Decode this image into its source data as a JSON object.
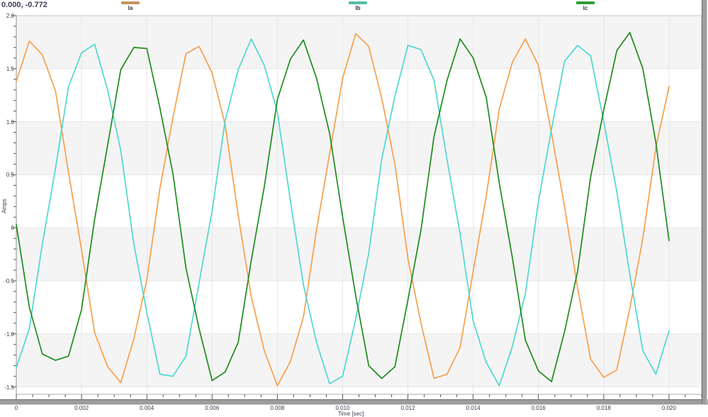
{
  "ui": {
    "cursor_readout": "0.000, -0.772"
  },
  "chart_data": {
    "type": "line",
    "title": "",
    "xlabel": "Time [sec]",
    "ylabel": "Amps",
    "xlim": [
      0,
      0.021
    ],
    "ylim": [
      -1.57,
      2.0
    ],
    "grid": true,
    "legend_position": "top",
    "x_tick_labels": [
      "0",
      "0.002",
      "0.004",
      "0.006",
      "0.008",
      "0.010",
      "0.012",
      "0.014",
      "0.016",
      "0.018",
      "0.020"
    ],
    "x_major_ticks": [
      0,
      0.002,
      0.004,
      0.006,
      0.008,
      0.01,
      0.012,
      0.014,
      0.016,
      0.018,
      0.02
    ],
    "x_minor_step": 0.0005,
    "y_tick_labels": [
      "2.0",
      "1.5",
      "1.0",
      "0.5",
      "0",
      "-0.5",
      "-1.0",
      "-1.5"
    ],
    "y_major_ticks": [
      2.0,
      1.5,
      1.0,
      0.5,
      0,
      -0.5,
      -1.0,
      -1.5
    ],
    "y_minor_step": 0.1,
    "band_color": "#f4f4f4",
    "gray_bands": [
      [
        2.0,
        1.5
      ],
      [
        1.0,
        0.5
      ],
      [
        0,
        -0.5
      ],
      [
        -1.0,
        -1.5
      ]
    ],
    "x": [
      0,
      0.0004,
      0.0008,
      0.0012,
      0.0016,
      0.002,
      0.0024,
      0.0028,
      0.0032,
      0.0036,
      0.004,
      0.0044,
      0.0048,
      0.0052,
      0.0056,
      0.006,
      0.0064,
      0.0068,
      0.0072,
      0.0076,
      0.008,
      0.0084,
      0.0088,
      0.0092,
      0.0096,
      0.01,
      0.0104,
      0.0108,
      0.0112,
      0.0116,
      0.012,
      0.0124,
      0.0128,
      0.0132,
      0.0136,
      0.014,
      0.0144,
      0.0148,
      0.0152,
      0.0156,
      0.016,
      0.0164,
      0.0168,
      0.0172,
      0.0176,
      0.018,
      0.0184,
      0.0188,
      0.0192,
      0.0196,
      0.02
    ],
    "series": [
      {
        "name": "Ia",
        "line_color": "#F89F4C",
        "legend_color": "#C4935C",
        "values": [
          1.38,
          1.76,
          1.63,
          1.29,
          0.52,
          -0.21,
          -0.99,
          -1.31,
          -1.46,
          -1.05,
          -0.49,
          0.37,
          1.04,
          1.64,
          1.71,
          1.46,
          0.97,
          0.12,
          -0.65,
          -1.16,
          -1.49,
          -1.26,
          -0.84,
          -0.02,
          0.7,
          1.41,
          1.83,
          1.71,
          1.22,
          0.6,
          -0.29,
          -0.9,
          -1.42,
          -1.38,
          -1.13,
          -0.41,
          0.3,
          1.12,
          1.56,
          1.78,
          1.53,
          0.89,
          0.2,
          -0.57,
          -1.24,
          -1.41,
          -1.34,
          -0.76,
          -0.1,
          0.76,
          1.33
        ]
      },
      {
        "name": "Ib",
        "line_color": "#4ED7D2",
        "legend_color": "#4FBFA5",
        "values": [
          -1.32,
          -0.95,
          -0.15,
          0.56,
          1.33,
          1.65,
          1.73,
          1.3,
          0.73,
          -0.15,
          -0.8,
          -1.38,
          -1.4,
          -1.21,
          -0.52,
          0.16,
          1.01,
          1.49,
          1.78,
          1.53,
          1.09,
          0.25,
          -0.54,
          -1.08,
          -1.47,
          -1.4,
          -0.86,
          -0.24,
          0.65,
          1.24,
          1.72,
          1.68,
          1.39,
          0.64,
          -0.06,
          -0.88,
          -1.27,
          -1.49,
          -1.12,
          -0.62,
          0.25,
          0.93,
          1.57,
          1.72,
          1.62,
          1.0,
          0.34,
          -0.44,
          -1.16,
          -1.38,
          -0.97
        ]
      },
      {
        "name": "Ic",
        "line_color": "#1E8C1E",
        "legend_color": "#2F9E33",
        "values": [
          0.03,
          -0.75,
          -1.19,
          -1.25,
          -1.21,
          -0.77,
          0.08,
          0.78,
          1.49,
          1.7,
          1.69,
          1.13,
          0.51,
          -0.38,
          -0.95,
          -1.44,
          -1.36,
          -1.08,
          -0.31,
          0.39,
          1.21,
          1.59,
          1.77,
          1.41,
          0.89,
          0.1,
          -0.64,
          -1.3,
          -1.42,
          -1.31,
          -0.68,
          -0.02,
          0.86,
          1.39,
          1.78,
          1.6,
          1.23,
          0.42,
          -0.28,
          -1.06,
          -1.35,
          -1.45,
          -0.98,
          -0.41,
          0.48,
          1.11,
          1.67,
          1.84,
          1.5,
          0.8,
          -0.12
        ]
      }
    ]
  }
}
